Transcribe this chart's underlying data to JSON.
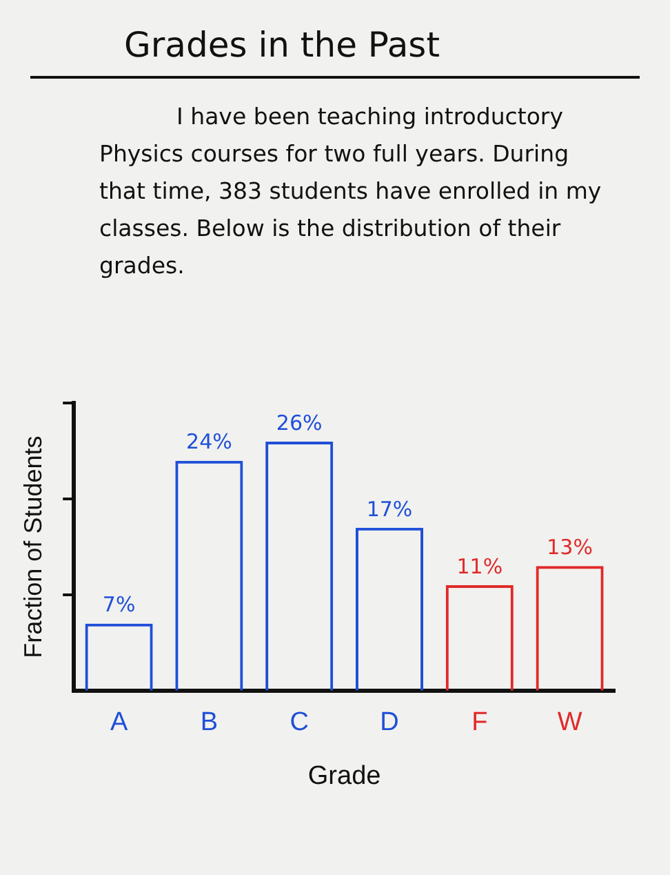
{
  "chart_data": {
    "type": "bar",
    "title": "Grades in the Past",
    "annotations": [
      "I have been teaching introductory Physics courses for two full years. During that time, 383 students have enrolled in my classes. Below is the distribution of their grades."
    ],
    "categories": [
      "A",
      "B",
      "C",
      "D",
      "F",
      "W"
    ],
    "values": [
      7,
      24,
      26,
      17,
      11,
      13
    ],
    "value_labels": [
      "7%",
      "24%",
      "26%",
      "17%",
      "11%",
      "13%"
    ],
    "colors": [
      "#1f4fd8",
      "#1f4fd8",
      "#1f4fd8",
      "#1f4fd8",
      "#e02a2a",
      "#e02a2a"
    ],
    "xlabel": "Grade",
    "ylabel": "Fraction of Students",
    "ylim": [
      0,
      30
    ],
    "yticks": [
      {
        "value": 10,
        "label": null
      },
      {
        "value": 20,
        "label": null
      },
      {
        "value": 30,
        "label": null
      }
    ],
    "tick_labels": "x",
    "grid": false,
    "legend": false
  }
}
